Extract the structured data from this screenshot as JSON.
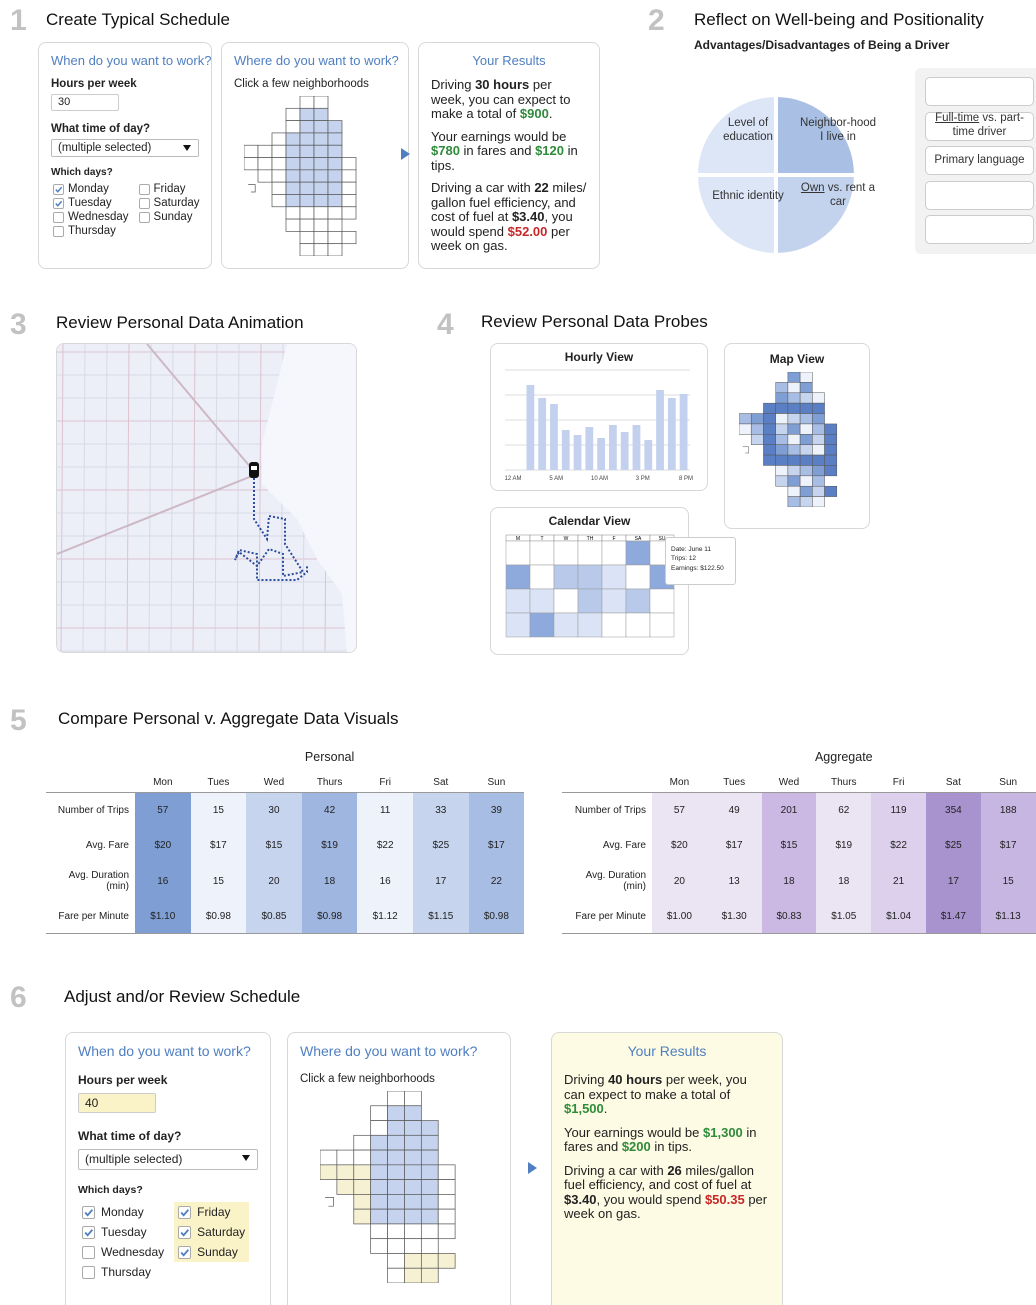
{
  "step1": {
    "number": "1",
    "title": "Create Typical Schedule",
    "when": {
      "heading": "When do you want to work?",
      "hours_label": "Hours per week",
      "hours": 30,
      "hours_highlight": false,
      "time_label": "What time of day?",
      "time_value": "(multiple selected)",
      "days_label": "Which days?",
      "days": [
        {
          "name": "Monday",
          "checked": true
        },
        {
          "name": "Tuesday",
          "checked": true
        },
        {
          "name": "Wednesday",
          "checked": false
        },
        {
          "name": "Thursday",
          "checked": false
        },
        {
          "name": "Friday",
          "checked": false
        },
        {
          "name": "Saturday",
          "checked": false
        },
        {
          "name": "Sunday",
          "checked": false
        }
      ]
    },
    "where": {
      "heading": "Where do you want to work?",
      "hint": "Click a few neighborhoods"
    },
    "results": {
      "heading": "Your Results",
      "highlight": false,
      "paragraphs": [
        [
          {
            "text": "Driving "
          },
          {
            "text": "30 hours",
            "style": "bold"
          },
          {
            "text": " per week, you can expect to make a total of "
          },
          {
            "text": "$900",
            "style": "green"
          },
          {
            "text": "."
          }
        ],
        [
          {
            "text": "Your earnings would be "
          },
          {
            "text": "$780",
            "style": "green"
          },
          {
            "text": " in fares and "
          },
          {
            "text": "$120",
            "style": "green"
          },
          {
            "text": " in tips."
          }
        ],
        [
          {
            "text": "Driving a car with "
          },
          {
            "text": "22",
            "style": "bold"
          },
          {
            "text": " miles/ gallon fuel efficiency, and cost of fuel at "
          },
          {
            "text": "$3.40",
            "style": "bold"
          },
          {
            "text": ", you would spend "
          },
          {
            "text": "$52.00",
            "style": "red"
          },
          {
            "text": " per week on gas."
          }
        ]
      ]
    }
  },
  "step2": {
    "number": "2",
    "title": "Reflect on Well-being and Positionality",
    "subtitle": "Advantages/Disadvantages of Being a Driver",
    "pie": [
      {
        "segments": [
          {
            "text": "Level of education"
          }
        ],
        "color": "#dce6f7"
      },
      {
        "segments": [
          {
            "text": "Neighbor-hood I live in"
          }
        ],
        "color": "#a9bfe3"
      },
      {
        "segments": [
          {
            "text": "Ethnic identity"
          }
        ],
        "color": "#dce6f7"
      },
      {
        "segments": [
          {
            "text": "Own",
            "style": "underline"
          },
          {
            "text": " vs. rent a car"
          }
        ],
        "color": "#c3d3ee"
      }
    ],
    "cards": [
      {
        "segments": [
          {
            "text": "Full-time",
            "style": "underline"
          },
          {
            "text": " vs. part-time driver"
          }
        ]
      },
      {
        "segments": [
          {
            "text": "Primary language"
          }
        ]
      }
    ]
  },
  "step3": {
    "number": "3",
    "title": "Review Personal Data Animation"
  },
  "step4": {
    "number": "4",
    "title": "Review Personal Data Probes",
    "hourly": {
      "title": "Hourly View",
      "type": "bar",
      "values": [
        85,
        72,
        66,
        40,
        35,
        43,
        32,
        45,
        38,
        45,
        30,
        80,
        72,
        76
      ],
      "ylim": [
        0,
        100
      ],
      "xtick_labels": [
        "12 AM",
        "5 AM",
        "10 AM",
        "3 PM",
        "8 PM"
      ],
      "color": "#c3d1ee"
    },
    "map": {
      "title": "Map View"
    },
    "calendar": {
      "title": "Calendar View",
      "day_headers": [
        "M",
        "T",
        "W",
        "TH",
        "F",
        "SA",
        "SU"
      ],
      "tooltip": [
        "Date: June 11",
        "Trips: 12",
        "Earnings: $122.50"
      ]
    }
  },
  "step5": {
    "number": "5",
    "title": "Compare Personal v. Aggregate Data Visuals",
    "personal": {
      "title": "Personal",
      "columns": [
        "Mon",
        "Tues",
        "Wed",
        "Thurs",
        "Fri",
        "Sat",
        "Sun"
      ],
      "column_colors": [
        "#7f9fd4",
        "#eef2fb",
        "#c6d4ee",
        "#9fb6e0",
        "#eef2fb",
        "#c6d4ee",
        "#a8bde4"
      ],
      "rows": [
        {
          "label": "Number of Trips",
          "values": [
            57,
            15,
            30,
            42,
            11,
            33,
            39
          ]
        },
        {
          "label": "Avg. Fare",
          "values": [
            "$20",
            "$17",
            "$15",
            "$19",
            "$22",
            "$25",
            "$17"
          ]
        },
        {
          "label": "Avg. Duration (min)",
          "values": [
            16,
            15,
            20,
            18,
            16,
            17,
            22
          ]
        },
        {
          "label": "Fare per Minute",
          "values": [
            "$1.10",
            "$0.98",
            "$0.85",
            "$0.98",
            "$1.12",
            "$1.15",
            "$0.98"
          ]
        }
      ]
    },
    "aggregate": {
      "title": "Aggregate",
      "columns": [
        "Mon",
        "Tues",
        "Wed",
        "Thurs",
        "Fri",
        "Sat",
        "Sun"
      ],
      "column_colors": [
        "#ebe4f3",
        "#ebe4f3",
        "#cbb9e4",
        "#ebe4f3",
        "#dcd0ec",
        "#a993cf",
        "#c8b6e2"
      ],
      "rows": [
        {
          "label": "Number of Trips",
          "values": [
            57,
            49,
            201,
            62,
            119,
            354,
            188
          ]
        },
        {
          "label": "Avg. Fare",
          "values": [
            "$20",
            "$17",
            "$15",
            "$19",
            "$22",
            "$25",
            "$17"
          ]
        },
        {
          "label": "Avg. Duration (min)",
          "values": [
            20,
            13,
            18,
            18,
            21,
            17,
            15
          ]
        },
        {
          "label": "Fare per Minute",
          "values": [
            "$1.00",
            "$1.30",
            "$0.83",
            "$1.05",
            "$1.04",
            "$1.47",
            "$1.13"
          ]
        }
      ]
    }
  },
  "step6": {
    "number": "6",
    "title": "Adjust and/or Review Schedule",
    "when": {
      "heading": "When do you want to work?",
      "hours_label": "Hours per week",
      "hours": 40,
      "hours_highlight": true,
      "time_label": "What time of day?",
      "time_value": "(multiple selected)",
      "days_label": "Which days?",
      "days": [
        {
          "name": "Monday",
          "checked": true
        },
        {
          "name": "Tuesday",
          "checked": true
        },
        {
          "name": "Wednesday",
          "checked": false
        },
        {
          "name": "Thursday",
          "checked": false
        },
        {
          "name": "Friday",
          "checked": true,
          "highlight": true
        },
        {
          "name": "Saturday",
          "checked": true,
          "highlight": true
        },
        {
          "name": "Sunday",
          "checked": true,
          "highlight": true
        }
      ]
    },
    "where": {
      "heading": "Where do you want to work?",
      "hint": "Click a few neighborhoods"
    },
    "results": {
      "heading": "Your Results",
      "highlight": true,
      "paragraphs": [
        [
          {
            "text": "Driving "
          },
          {
            "text": "40 hours",
            "style": "bold"
          },
          {
            "text": " per week, you can expect to make a total of "
          },
          {
            "text": "$1,500",
            "style": "green"
          },
          {
            "text": "."
          }
        ],
        [
          {
            "text": "Your earnings would be "
          },
          {
            "text": "$1,300",
            "style": "green"
          },
          {
            "text": " in fares and "
          },
          {
            "text": "$200",
            "style": "green"
          },
          {
            "text": " in tips."
          }
        ],
        [
          {
            "text": "Driving a car with "
          },
          {
            "text": "26",
            "style": "bold"
          },
          {
            "text": " miles/gallon fuel efficiency, and cost of fuel at "
          },
          {
            "text": "$3.40",
            "style": "bold"
          },
          {
            "text": ", you would spend "
          },
          {
            "text": "$50.35",
            "style": "red"
          },
          {
            "text": " per week on gas."
          }
        ]
      ]
    }
  }
}
